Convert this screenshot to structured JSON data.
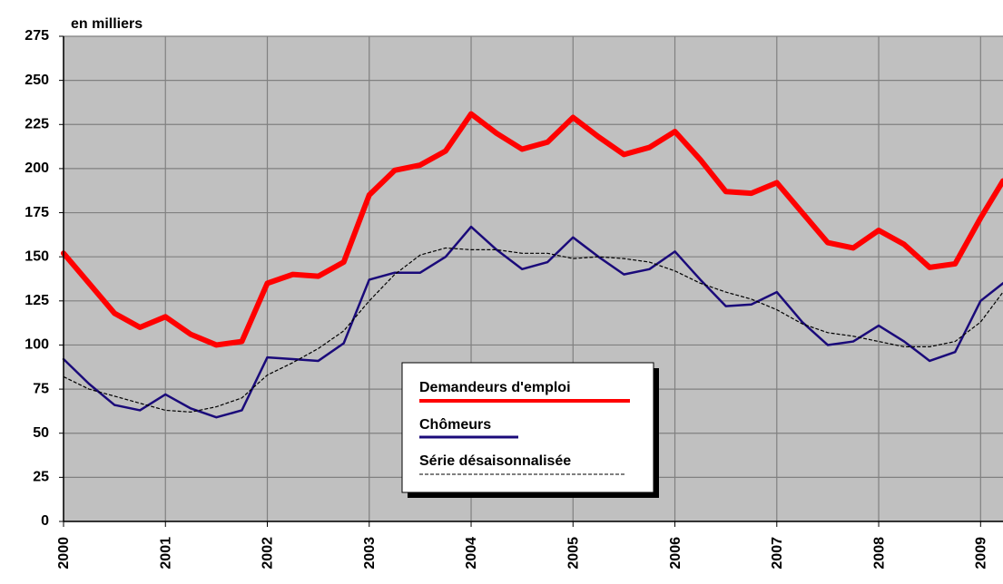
{
  "chart_data": {
    "type": "line",
    "y_label": "en milliers",
    "x": [
      2000,
      2000.25,
      2000.5,
      2000.75,
      2001,
      2001.25,
      2001.5,
      2001.75,
      2002,
      2002.25,
      2002.5,
      2002.75,
      2003,
      2003.25,
      2003.5,
      2003.75,
      2004,
      2004.25,
      2004.5,
      2004.75,
      2005,
      2005.25,
      2005.5,
      2005.75,
      2006,
      2006.25,
      2006.5,
      2006.75,
      2007,
      2007.25,
      2007.5,
      2007.75,
      2008,
      2008.25,
      2008.5,
      2008.75,
      2009,
      2009.22
    ],
    "series": [
      {
        "name": "Demandeurs d'emploi",
        "color": "#ff0000",
        "style": "solid",
        "values": [
          152,
          135,
          118,
          110,
          116,
          106,
          100,
          102,
          135,
          140,
          139,
          147,
          185,
          199,
          202,
          210,
          231,
          220,
          211,
          215,
          229,
          218,
          208,
          212,
          221,
          205,
          187,
          186,
          192,
          175,
          158,
          155,
          165,
          157,
          144,
          146,
          172,
          193
        ]
      },
      {
        "name": "Chômeurs",
        "color": "#1a0a7a",
        "style": "solid",
        "values": [
          92,
          78,
          66,
          63,
          72,
          64,
          59,
          63,
          93,
          92,
          91,
          101,
          137,
          141,
          141,
          150,
          167,
          154,
          143,
          147,
          161,
          150,
          140,
          143,
          153,
          137,
          122,
          123,
          130,
          113,
          100,
          102,
          111,
          102,
          91,
          96,
          125,
          135
        ]
      },
      {
        "name": "Série désaisonnalisée",
        "color": "#000000",
        "style": "dashed",
        "values": [
          82,
          75,
          71,
          67,
          63,
          62,
          65,
          70,
          83,
          90,
          98,
          108,
          125,
          140,
          151,
          155,
          154,
          154,
          152,
          152,
          149,
          150,
          149,
          147,
          142,
          135,
          130,
          126,
          120,
          112,
          107,
          105,
          102,
          99,
          99,
          102,
          113,
          130
        ]
      }
    ],
    "xlim": [
      2000,
      2009.22
    ],
    "xticks": [
      2000,
      2001,
      2002,
      2003,
      2004,
      2005,
      2006,
      2007,
      2008,
      2009
    ],
    "ylim": [
      0,
      275
    ],
    "yticks": [
      0,
      25,
      50,
      75,
      100,
      125,
      150,
      175,
      200,
      225,
      250,
      275
    ],
    "grid": true,
    "background": "#c0c0c0"
  }
}
